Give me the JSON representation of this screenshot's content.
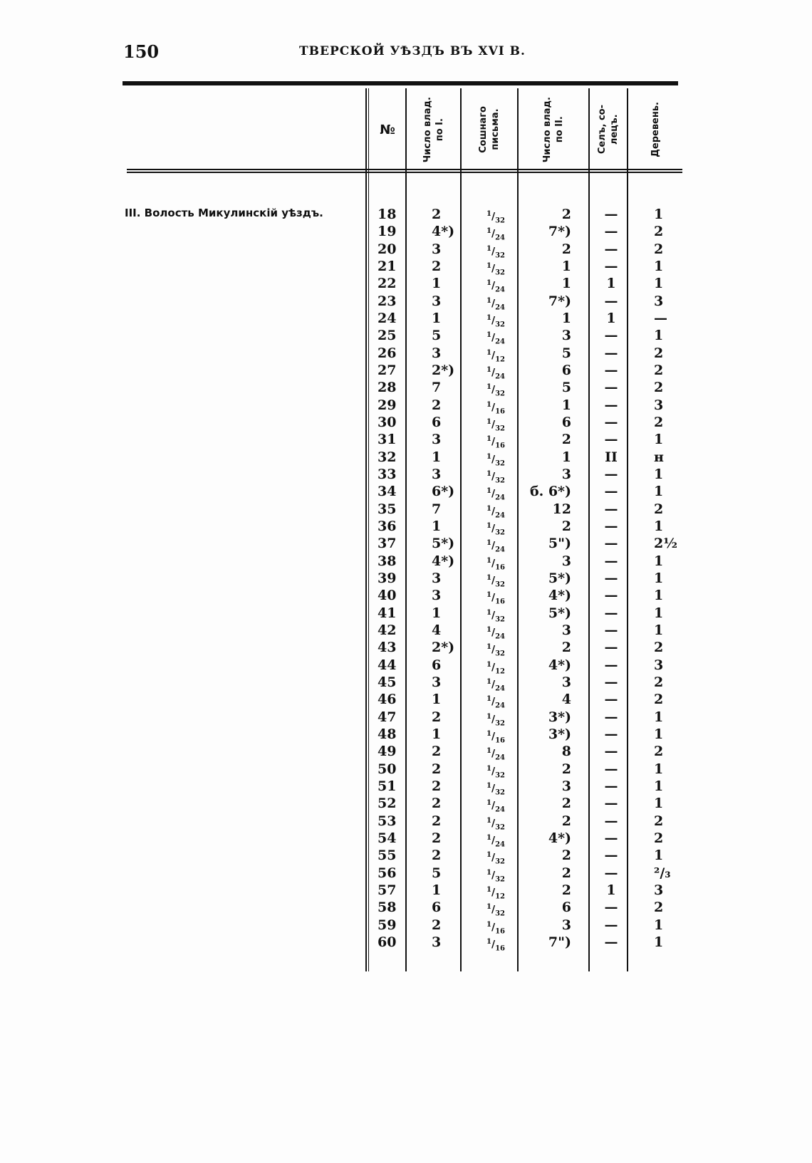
{
  "page_number": "150",
  "running_head": "ТВЕРСКОЙ УѢЗДЪ ВЪ XVI В.",
  "headers": {
    "no": "№",
    "col_i": "Число влад.\nпо I.",
    "soshnoe": "Сошнаго\nписьма.",
    "col_ii": "Число влад.\nпо II.",
    "sel": "Селъ, со-\nлецъ.",
    "derevni": "Деревень."
  },
  "section_label": "III. Волость Микулинскій уѣздъ.",
  "rows": [
    {
      "no": "18",
      "i": "2",
      "s": "32",
      "ii": "2",
      "sel": "—",
      "d": "1"
    },
    {
      "no": "19",
      "i": "4*)",
      "s": "24",
      "ii": "7*)",
      "sel": "—",
      "d": "2"
    },
    {
      "no": "20",
      "i": "3",
      "s": "32",
      "ii": "2",
      "sel": "—",
      "d": "2"
    },
    {
      "no": "21",
      "i": "2",
      "s": "32",
      "ii": "1",
      "sel": "—",
      "d": "1"
    },
    {
      "no": "22",
      "i": "1",
      "s": "24",
      "ii": "1",
      "sel": "1",
      "d": "1"
    },
    {
      "no": "23",
      "i": "3",
      "s": "24",
      "ii": "7*)",
      "sel": "—",
      "d": "3"
    },
    {
      "no": "24",
      "i": "1",
      "s": "32",
      "ii": "1",
      "sel": "1",
      "d": "—"
    },
    {
      "no": "25",
      "i": "5",
      "s": "24",
      "ii": "3",
      "sel": "—",
      "d": "1"
    },
    {
      "no": "26",
      "i": "3",
      "s": "12",
      "ii": "5",
      "sel": "—",
      "d": "2"
    },
    {
      "no": "27",
      "i": "2*)",
      "s": "24",
      "ii": "6",
      "sel": "—",
      "d": "2"
    },
    {
      "no": "28",
      "i": "7",
      "s": "32",
      "ii": "5",
      "sel": "—",
      "d": "2"
    },
    {
      "no": "29",
      "i": "2",
      "s": "16",
      "ii": "1",
      "sel": "—",
      "d": "3"
    },
    {
      "no": "30",
      "i": "6",
      "s": "32",
      "ii": "6",
      "sel": "—",
      "d": "2"
    },
    {
      "no": "31",
      "i": "3",
      "s": "16",
      "ii": "2",
      "sel": "—",
      "d": "1"
    },
    {
      "no": "32",
      "i": "1",
      "s": "32",
      "ii": "1",
      "sel": "II",
      "d": "н"
    },
    {
      "no": "33",
      "i": "3",
      "s": "32",
      "ii": "3",
      "sel": "—",
      "d": "1"
    },
    {
      "no": "34",
      "i": "6*)",
      "s": "24",
      "ii": "б. 6*)",
      "sel": "—",
      "d": "1"
    },
    {
      "no": "35",
      "i": "7",
      "s": "24",
      "ii": "12",
      "sel": "—",
      "d": "2"
    },
    {
      "no": "36",
      "i": "1",
      "s": "32",
      "ii": "2",
      "sel": "—",
      "d": "1"
    },
    {
      "no": "37",
      "i": "5*)",
      "s": "24",
      "ii": "5\")",
      "sel": "—",
      "d": "2½"
    },
    {
      "no": "38",
      "i": "4*)",
      "s": "16",
      "ii": "3",
      "sel": "—",
      "d": "1"
    },
    {
      "no": "39",
      "i": "3",
      "s": "32",
      "ii": "5*)",
      "sel": "—",
      "d": "1"
    },
    {
      "no": "40",
      "i": "3",
      "s": "16",
      "ii": "4*)",
      "sel": "—",
      "d": "1"
    },
    {
      "no": "41",
      "i": "1",
      "s": "32",
      "ii": "5*)",
      "sel": "—",
      "d": "1"
    },
    {
      "no": "42",
      "i": "4",
      "s": "24",
      "ii": "3",
      "sel": "—",
      "d": "1"
    },
    {
      "no": "43",
      "i": "2*)",
      "s": "32",
      "ii": "2",
      "sel": "—",
      "d": "2"
    },
    {
      "no": "44",
      "i": "6",
      "s": "12",
      "ii": "4*)",
      "sel": "—",
      "d": "3"
    },
    {
      "no": "45",
      "i": "3",
      "s": "24",
      "ii": "3",
      "sel": "—",
      "d": "2"
    },
    {
      "no": "46",
      "i": "1",
      "s": "24",
      "ii": "4",
      "sel": "—",
      "d": "2"
    },
    {
      "no": "47",
      "i": "2",
      "s": "32",
      "ii": "3*)",
      "sel": "—",
      "d": "1"
    },
    {
      "no": "48",
      "i": "1",
      "s": "16",
      "ii": "3*)",
      "sel": "—",
      "d": "1"
    },
    {
      "no": "49",
      "i": "2",
      "s": "24",
      "ii": "8",
      "sel": "—",
      "d": "2"
    },
    {
      "no": "50",
      "i": "2",
      "s": "32",
      "ii": "2",
      "sel": "—",
      "d": "1"
    },
    {
      "no": "51",
      "i": "2",
      "s": "32",
      "ii": "3",
      "sel": "—",
      "d": "1"
    },
    {
      "no": "52",
      "i": "2",
      "s": "24",
      "ii": "2",
      "sel": "—",
      "d": "1"
    },
    {
      "no": "53",
      "i": "2",
      "s": "32",
      "ii": "2",
      "sel": "—",
      "d": "2"
    },
    {
      "no": "54",
      "i": "2",
      "s": "24",
      "ii": "4*)",
      "sel": "—",
      "d": "2"
    },
    {
      "no": "55",
      "i": "2",
      "s": "32",
      "ii": "2",
      "sel": "—",
      "d": "1"
    },
    {
      "no": "56",
      "i": "5",
      "s": "32",
      "ii": "2",
      "sel": "—",
      "d": "²/₃"
    },
    {
      "no": "57",
      "i": "1",
      "s": "12",
      "ii": "2",
      "sel": "1",
      "d": "3"
    },
    {
      "no": "58",
      "i": "6",
      "s": "32",
      "ii": "6",
      "sel": "—",
      "d": "2"
    },
    {
      "no": "59",
      "i": "2",
      "s": "16",
      "ii": "3",
      "sel": "—",
      "d": "1"
    },
    {
      "no": "60",
      "i": "3",
      "s": "16",
      "ii": "7\")",
      "sel": "—",
      "d": "1"
    }
  ],
  "fraction_numerator": "1"
}
